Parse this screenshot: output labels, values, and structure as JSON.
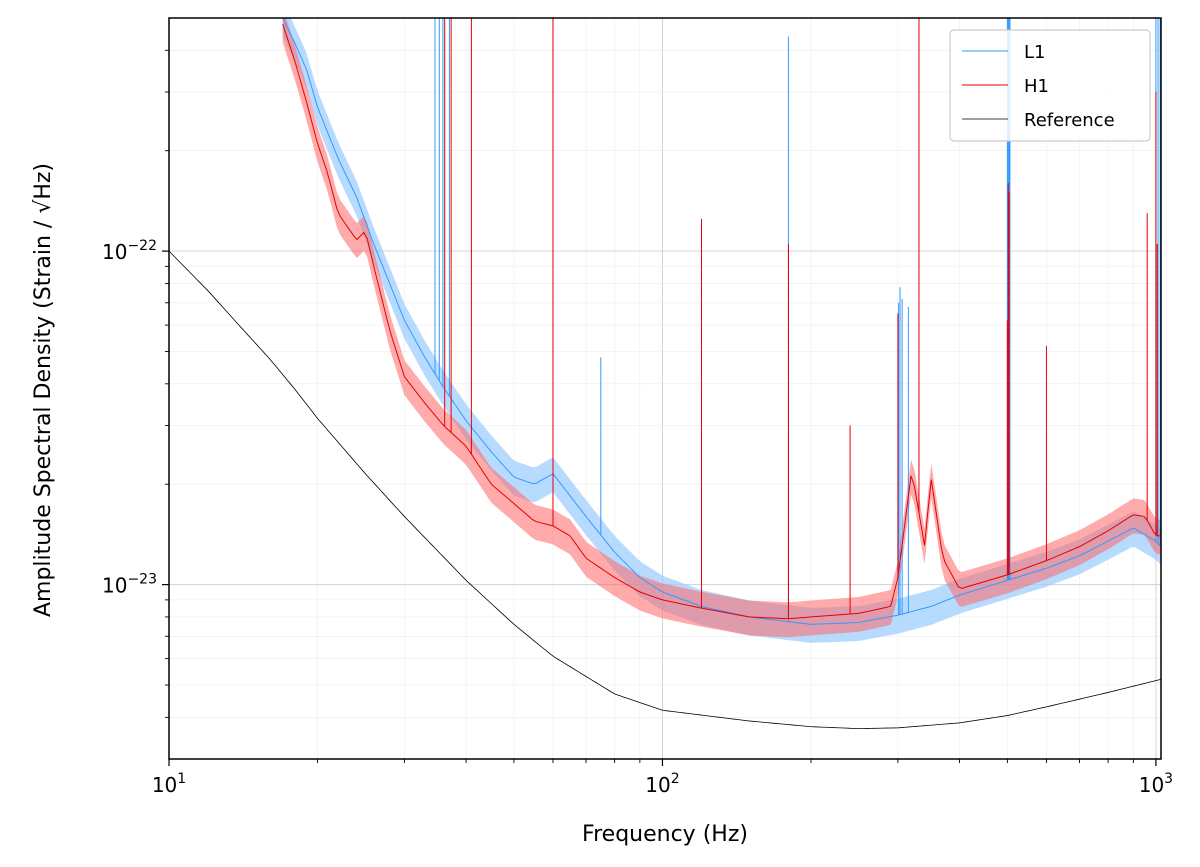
{
  "chart_data": {
    "type": "line",
    "xlabel": "Frequency (Hz)",
    "ylabel": "Amplitude Spectral Density (Strain / √Hz)",
    "xscale": "log",
    "yscale": "log",
    "xlim": [
      10,
      1024
    ],
    "ylim": [
      3e-24,
      5e-22
    ],
    "x_ticks": [
      {
        "value": 10,
        "base": "10",
        "exp": "1"
      },
      {
        "value": 100,
        "base": "10",
        "exp": "2"
      },
      {
        "value": 1000,
        "base": "10",
        "exp": "3"
      }
    ],
    "y_ticks": [
      {
        "value": 1e-22,
        "base": "10",
        "exp": "−22"
      },
      {
        "value": 1e-23,
        "base": "10",
        "exp": "−23"
      }
    ],
    "grid": true,
    "legend_position": "top-right",
    "series": [
      {
        "name": "L1",
        "color": "#3399ff",
        "band_color": "#99ccff",
        "x": [
          17,
          18,
          19,
          20,
          22,
          24,
          26,
          28,
          30,
          33,
          36,
          40,
          45,
          50,
          55,
          60,
          70,
          80,
          90,
          100,
          120,
          150,
          200,
          250,
          300,
          350,
          400,
          500,
          600,
          700,
          800,
          900,
          1000,
          1024
        ],
        "y": [
          5e-22,
          4.2e-22,
          3.5e-22,
          2.7e-22,
          1.9e-22,
          1.45e-22,
          1.05e-22,
          8e-23,
          6.2e-23,
          4.8e-23,
          3.9e-23,
          3.1e-23,
          2.5e-23,
          2.1e-23,
          2e-23,
          2.15e-23,
          1.6e-23,
          1.25e-23,
          1.05e-23,
          9.5e-24,
          8.6e-24,
          8e-24,
          7.6e-24,
          7.7e-24,
          8.1e-24,
          8.6e-24,
          9.3e-24,
          1.03e-23,
          1.12e-23,
          1.22e-23,
          1.35e-23,
          1.48e-23,
          1.35e-23,
          1.3e-23
        ],
        "band_rel": 0.12,
        "lines": [
          {
            "f": 34.6,
            "amp": 5e-22
          },
          {
            "f": 35.3,
            "amp": 5e-22
          },
          {
            "f": 35.9,
            "amp": 5e-22
          },
          {
            "f": 37.0,
            "amp": 5e-22
          },
          {
            "f": 60.0,
            "amp": 5e-22
          },
          {
            "f": 75.0,
            "amp": 4.8e-23
          },
          {
            "f": 180.0,
            "amp": 4.4e-22
          },
          {
            "f": 301.0,
            "amp": 7e-23
          },
          {
            "f": 303.0,
            "amp": 7.8e-23
          },
          {
            "f": 306.0,
            "amp": 7.2e-23
          },
          {
            "f": 315.0,
            "amp": 6.8e-23
          },
          {
            "f": 500.0,
            "amp": 5e-22
          },
          {
            "f": 502.0,
            "amp": 5e-22
          },
          {
            "f": 504.0,
            "amp": 5e-22
          },
          {
            "f": 506.0,
            "amp": 5e-22
          },
          {
            "f": 1000.0,
            "amp": 5e-22
          },
          {
            "f": 1010.0,
            "amp": 5e-22
          },
          {
            "f": 1020.0,
            "amp": 5e-22
          }
        ]
      },
      {
        "name": "H1",
        "color": "#e60000",
        "band_color": "#ff6666",
        "x": [
          17,
          18,
          19,
          20,
          21,
          22,
          24,
          25,
          26,
          28,
          30,
          33,
          36,
          40,
          45,
          50,
          55,
          60,
          65,
          70,
          80,
          90,
          100,
          120,
          150,
          180,
          200,
          250,
          290,
          300,
          320,
          340,
          350,
          370,
          400,
          500,
          600,
          700,
          800,
          900,
          950,
          1000,
          1024
        ],
        "y": [
          4.8e-22,
          3.7e-22,
          2.8e-22,
          2.1e-22,
          1.7e-22,
          1.3e-22,
          1.08e-22,
          1.15e-22,
          9e-23,
          5.8e-23,
          4.2e-23,
          3.5e-23,
          3e-23,
          2.6e-23,
          2e-23,
          1.75e-23,
          1.55e-23,
          1.5e-23,
          1.4e-23,
          1.2e-23,
          1.05e-23,
          9.5e-24,
          9e-24,
          8.5e-24,
          8e-24,
          7.9e-24,
          8e-24,
          8.2e-24,
          8.6e-24,
          1.05e-23,
          2.2e-23,
          1.3e-23,
          2.1e-23,
          1.2e-23,
          9.7e-24,
          1.07e-23,
          1.18e-23,
          1.3e-23,
          1.45e-23,
          1.62e-23,
          1.6e-23,
          1.4e-23,
          1.4e-23
        ],
        "band_rel": 0.12,
        "lines": [
          {
            "f": 36.2,
            "amp": 5e-22
          },
          {
            "f": 37.3,
            "amp": 5e-22
          },
          {
            "f": 41.0,
            "amp": 5e-22
          },
          {
            "f": 60.0,
            "amp": 5e-22
          },
          {
            "f": 120.0,
            "amp": 1.25e-22
          },
          {
            "f": 180.0,
            "amp": 1.05e-22
          },
          {
            "f": 240.0,
            "amp": 3e-23
          },
          {
            "f": 300.0,
            "amp": 6.5e-23
          },
          {
            "f": 331.0,
            "amp": 5e-22
          },
          {
            "f": 500.0,
            "amp": 6.2e-23
          },
          {
            "f": 502.0,
            "amp": 1.6e-22
          },
          {
            "f": 504.0,
            "amp": 1.5e-22
          },
          {
            "f": 600.0,
            "amp": 5.2e-23
          },
          {
            "f": 960.0,
            "amp": 1.3e-22
          },
          {
            "f": 1000.0,
            "amp": 3e-22
          },
          {
            "f": 1006.0,
            "amp": 1.05e-22
          }
        ]
      },
      {
        "name": "Reference",
        "color": "#000000",
        "x": [
          10,
          12,
          14,
          16,
          18,
          20,
          25,
          30,
          40,
          50,
          60,
          80,
          100,
          150,
          200,
          250,
          300,
          400,
          500,
          600,
          800,
          1024
        ],
        "y": [
          1e-22,
          7.6e-23,
          5.9e-23,
          4.75e-23,
          3.85e-23,
          3.15e-23,
          2.15e-23,
          1.6e-23,
          1.03e-23,
          7.6e-24,
          6.1e-24,
          4.7e-24,
          4.2e-24,
          3.9e-24,
          3.75e-24,
          3.7e-24,
          3.72e-24,
          3.85e-24,
          4.05e-24,
          4.3e-24,
          4.75e-24,
          5.2e-24
        ]
      }
    ]
  }
}
